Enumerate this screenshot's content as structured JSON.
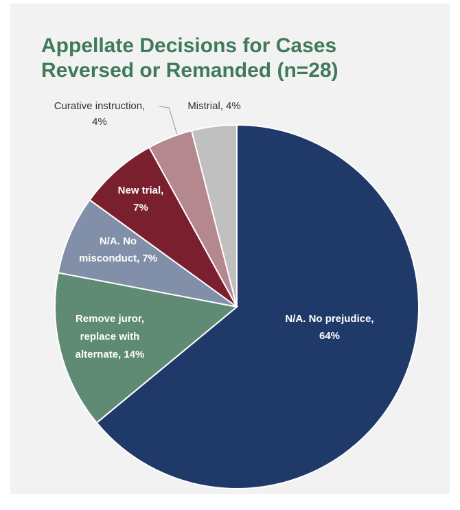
{
  "chart_data": {
    "type": "pie",
    "title": [
      "Appellate Decisions for Cases",
      "Reversed or Remanded (n=28)"
    ],
    "categories": [
      "N/A. No prejudice,",
      "Remove juror, replace with alternate,",
      "N/A. No misconduct,",
      "New trial,",
      "Curative instruction,",
      "Mistrial,"
    ],
    "values": [
      64,
      14,
      7,
      7,
      4,
      4
    ],
    "value_labels": [
      "64%",
      "14%",
      "7%",
      "7%",
      "4%",
      "4%"
    ],
    "colors": [
      "#1f3a68",
      "#5f8a73",
      "#8190a8",
      "#7a1f2e",
      "#b5878e",
      "#c0c0c0"
    ]
  }
}
